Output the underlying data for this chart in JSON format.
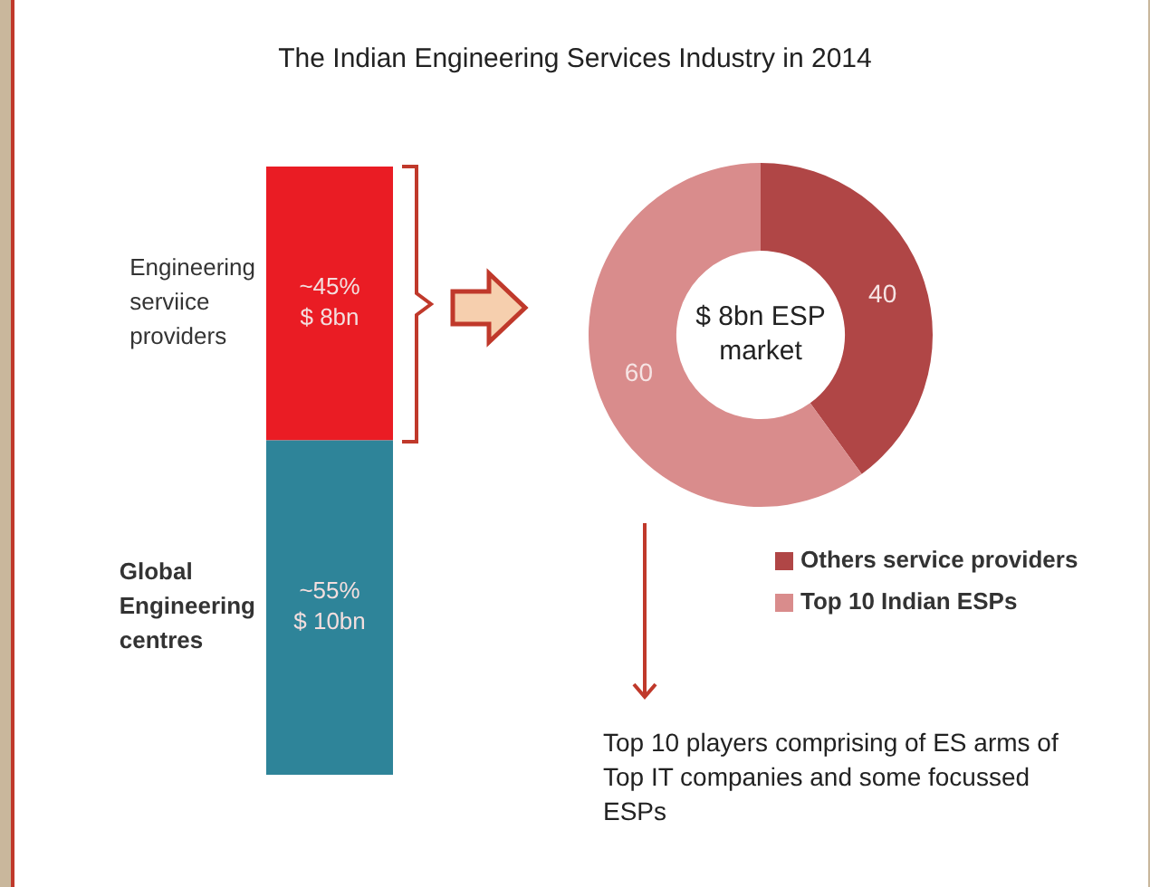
{
  "chart_data": [
    {
      "type": "bar",
      "title": "The Indian Engineering Services Industry in 2014",
      "categories": [
        null
      ],
      "stacked": true,
      "ylim": [
        0,
        100
      ],
      "tick_labels": false,
      "series": [
        {
          "name": "Global Engineering centres",
          "color": "#2e8499",
          "values": [
            55
          ],
          "value_labels": [
            "~55%\n$ 10bn"
          ]
        },
        {
          "name": "Engineering serviice providers",
          "color": "#ea1c24",
          "values": [
            45
          ],
          "value_labels": [
            "~45%\n$ 8bn"
          ]
        }
      ]
    },
    {
      "type": "donut",
      "categories": [
        "Others service providers",
        "Top 10 Indian ESPs"
      ],
      "values": [
        40,
        60
      ],
      "colors": [
        "#b04646",
        "#d98c8c"
      ],
      "data_labels": true,
      "legend": "bottom right",
      "annotations": [
        "$ 8bn ESP market",
        "Top 10 players comprising of ES arms of Top IT companies and some focussed ESPs"
      ]
    }
  ]
}
